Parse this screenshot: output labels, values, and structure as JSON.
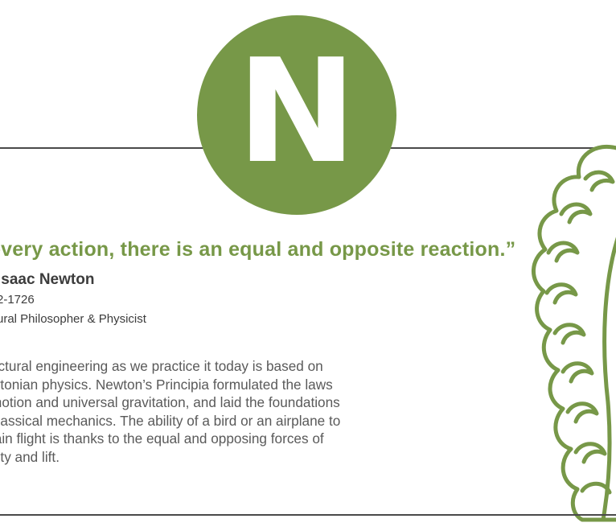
{
  "badge": {
    "letter": "N"
  },
  "quote": "r every action, there is an equal and opposite reaction.”",
  "author": {
    "name": "Isaac Newton",
    "dates": "2-1726",
    "role": "ural Philosopher & Physicist"
  },
  "body_lines": [
    "uctural engineering as we practice it today is based on",
    "wtonian physics. Newton’s Principia formulated the laws",
    "motion and universal gravitation, and laid the foundations",
    "classical mechanics. The ability of a bird or an airplane to",
    "tain flight is thanks to the equal and opposing forces of",
    "vity and lift."
  ],
  "colors": {
    "accent": "#779848",
    "text": "#3c3c3c",
    "body": "#5a5a5a",
    "rule": "#4a4a4a"
  },
  "illustration": "newton-wig-outline"
}
